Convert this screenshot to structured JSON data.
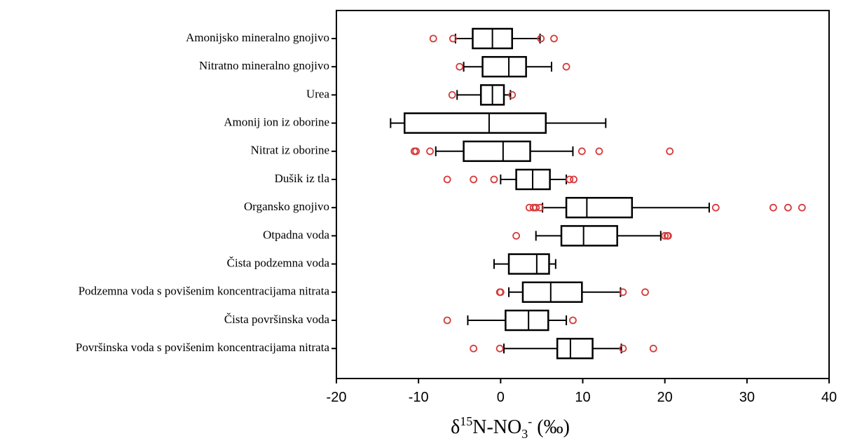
{
  "chart_data": {
    "type": "box",
    "orientation": "horizontal",
    "categories": [
      "Amonijsko mineralno gnojivo",
      "Nitratno mineralno gnojivo",
      "Urea",
      "Amonij ion iz oborine",
      "Nitrat iz oborine",
      "Dušik iz tla",
      "Organsko gnojivo",
      "Otpadna voda",
      "Čista podzemna voda",
      "Podzemna voda s povišenim koncentracijama nitrata",
      "Čista površinska voda",
      "Površinska voda s povišenim koncentracijama nitrata"
    ],
    "boxes": [
      {
        "min": -5.5,
        "q1": -3.4,
        "median": -1.0,
        "q3": 1.4,
        "max": 4.8,
        "outliers": [
          -8.2,
          -5.8,
          4.9,
          6.5
        ]
      },
      {
        "min": -4.5,
        "q1": -2.2,
        "median": 1.0,
        "q3": 3.1,
        "max": 6.2,
        "outliers": [
          -5.0,
          8.0
        ]
      },
      {
        "min": -5.3,
        "q1": -2.4,
        "median": -1.0,
        "q3": 0.4,
        "max": 1.2,
        "outliers": [
          -5.9,
          1.4
        ]
      },
      {
        "min": -13.4,
        "q1": -11.7,
        "median": -1.4,
        "q3": 5.5,
        "max": 12.8,
        "outliers": []
      },
      {
        "min": -7.9,
        "q1": -4.5,
        "median": 0.3,
        "q3": 3.6,
        "max": 8.8,
        "outliers": [
          -10.5,
          -10.3,
          -8.6,
          9.9,
          12.0,
          20.6
        ]
      },
      {
        "min": 0.0,
        "q1": 1.9,
        "median": 3.9,
        "q3": 6.0,
        "max": 8.0,
        "outliers": [
          -6.5,
          -3.3,
          -0.8,
          8.4,
          8.9
        ]
      },
      {
        "min": 5.1,
        "q1": 8.0,
        "median": 10.5,
        "q3": 16.0,
        "max": 25.4,
        "outliers": [
          3.5,
          4.0,
          4.3,
          4.8,
          26.2,
          33.2,
          35.0,
          36.7
        ]
      },
      {
        "min": 4.3,
        "q1": 7.4,
        "median": 10.1,
        "q3": 14.2,
        "max": 19.5,
        "outliers": [
          1.9,
          20.0,
          20.3,
          20.4
        ]
      },
      {
        "min": -0.8,
        "q1": 1.0,
        "median": 4.4,
        "q3": 5.9,
        "max": 6.7,
        "outliers": []
      },
      {
        "min": 1.0,
        "q1": 2.7,
        "median": 6.1,
        "q3": 9.9,
        "max": 14.6,
        "outliers": [
          -0.1,
          0.0,
          14.9,
          17.6
        ]
      },
      {
        "min": -4.0,
        "q1": 0.6,
        "median": 3.4,
        "q3": 5.8,
        "max": 8.0,
        "outliers": [
          -6.5,
          8.8
        ]
      },
      {
        "min": 0.4,
        "q1": 6.9,
        "median": 8.5,
        "q3": 11.2,
        "max": 14.7,
        "outliers": [
          -3.3,
          -0.1,
          14.9,
          18.6
        ]
      }
    ],
    "box_color": "#000000",
    "outlier_color": "#d63a3a",
    "xlim": [
      -20,
      40
    ],
    "xticks": [
      -20,
      -10,
      0,
      10,
      20,
      30,
      40
    ],
    "xlabel": {
      "symbol": "δ",
      "sup": "15",
      "base": "N-NO",
      "sub": "3",
      "sup2": "-",
      "unit": " (‰)"
    }
  }
}
